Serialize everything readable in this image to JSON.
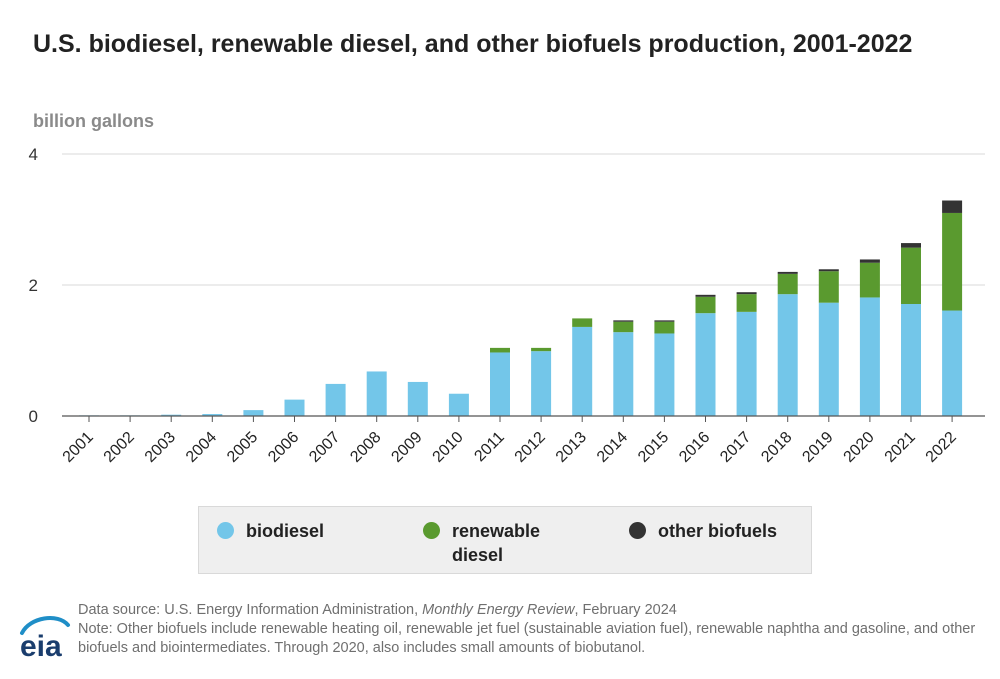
{
  "title": "U.S. biodiesel, renewable diesel, and other biofuels production, 2001-2022",
  "unit_label": "billion gallons",
  "colors": {
    "biodiesel": "#73c6e9",
    "renewable_diesel": "#5a9a2f",
    "other_biofuels": "#333333",
    "gridline": "#d9d9d9",
    "axis": "#555555"
  },
  "legend": [
    {
      "key": "biodiesel",
      "label": "biodiesel"
    },
    {
      "key": "renewable_diesel",
      "label": "renewable diesel"
    },
    {
      "key": "other_biofuels",
      "label": "other biofuels"
    }
  ],
  "footer": {
    "source_prefix": "Data source: U.S. Energy Information Administration, ",
    "source_title": "Monthly Energy Review",
    "source_suffix": ", February 2024",
    "note": "Note: Other biofuels include renewable heating oil, renewable jet fuel (sustainable aviation fuel), renewable naphtha and gasoline, and other biofuels and biointermediates. Through 2020, also includes small amounts of biobutanol."
  },
  "logo": {
    "text": "eia",
    "icon": "eia-logo-icon"
  },
  "chart_data": {
    "type": "bar",
    "stacked": true,
    "categories": [
      "2001",
      "2002",
      "2003",
      "2004",
      "2005",
      "2006",
      "2007",
      "2008",
      "2009",
      "2010",
      "2011",
      "2012",
      "2013",
      "2014",
      "2015",
      "2016",
      "2017",
      "2018",
      "2019",
      "2020",
      "2021",
      "2022"
    ],
    "series": [
      {
        "name": "biodiesel",
        "values": [
          0.01,
          0.01,
          0.02,
          0.03,
          0.09,
          0.25,
          0.49,
          0.68,
          0.52,
          0.34,
          0.97,
          0.99,
          1.36,
          1.28,
          1.26,
          1.57,
          1.59,
          1.86,
          1.73,
          1.81,
          1.71,
          1.61
        ]
      },
      {
        "name": "renewable diesel",
        "values": [
          0,
          0,
          0,
          0,
          0,
          0,
          0,
          0,
          0,
          0,
          0.07,
          0.05,
          0.13,
          0.16,
          0.18,
          0.25,
          0.27,
          0.31,
          0.48,
          0.53,
          0.86,
          1.49
        ]
      },
      {
        "name": "other biofuels",
        "values": [
          0,
          0,
          0,
          0,
          0,
          0,
          0,
          0,
          0,
          0,
          0,
          0,
          0,
          0.02,
          0.02,
          0.03,
          0.03,
          0.03,
          0.03,
          0.05,
          0.07,
          0.19
        ]
      }
    ],
    "ylim": [
      0,
      4
    ],
    "yticks": [
      0,
      2,
      4
    ],
    "xlabel": "",
    "ylabel": "billion gallons",
    "grid": true,
    "legend_position": "bottom"
  }
}
